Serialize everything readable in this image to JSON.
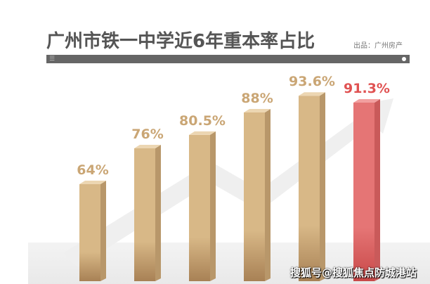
{
  "chart_data": {
    "type": "bar",
    "title": "广州市铁一中学近6年重本率占比",
    "source": "出品：广州房产",
    "categories": [
      "",
      "",
      "",
      "",
      "",
      ""
    ],
    "values": [
      64,
      76,
      80.5,
      88,
      93.6,
      91.3
    ],
    "labels": [
      "64%",
      "76%",
      "80.5%",
      "88%",
      "93.6%",
      "91.3%"
    ],
    "colors": {
      "default": "#d8b887",
      "highlight": "#e57575",
      "label_default": "#caa675",
      "label_highlight": "#e05252"
    },
    "highlight_index": 5,
    "grid": false
  },
  "watermark": "搜狐号@搜狐焦点防城港站"
}
